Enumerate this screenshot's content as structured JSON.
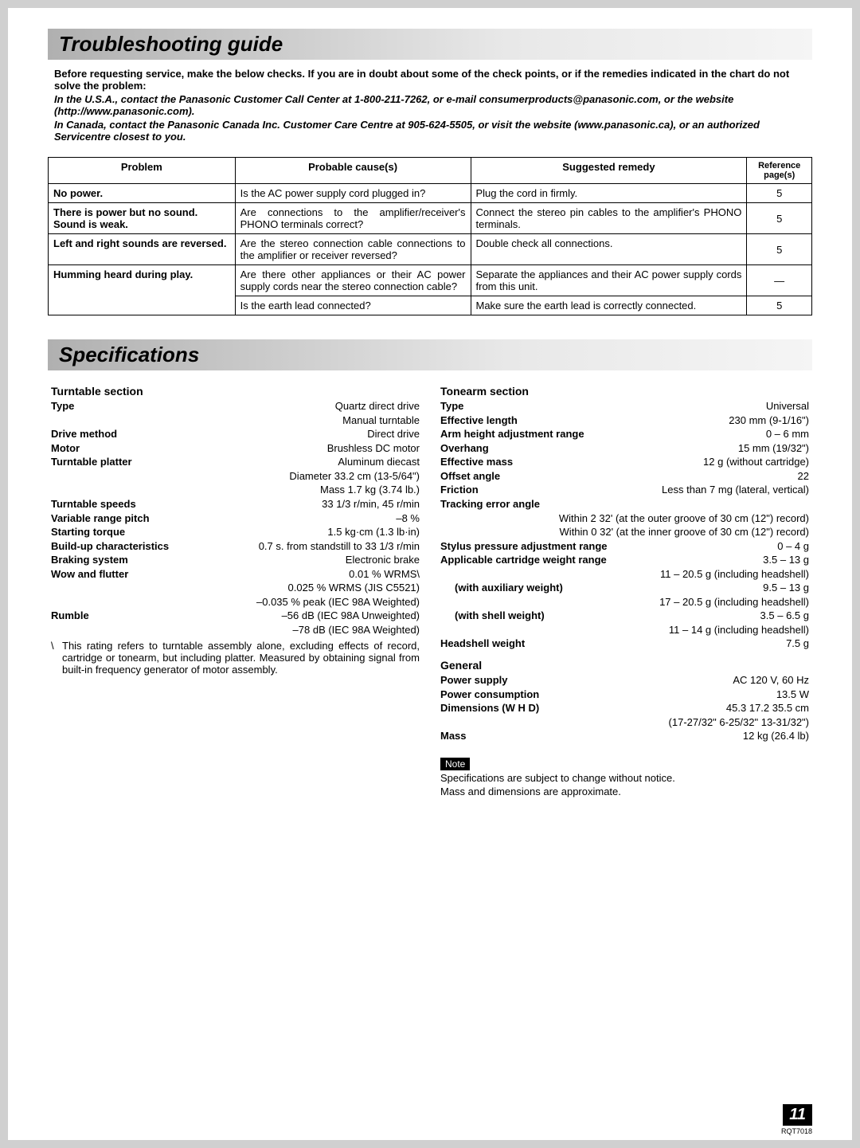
{
  "titles": {
    "troubleshooting": "Troubleshooting guide",
    "specifications": "Specifications"
  },
  "intro": {
    "lead": "Before requesting service, make the below checks. If you are in doubt about some of the check points, or if the remedies indicated in the chart do not solve the problem:",
    "usa": "In the U.S.A., contact the Panasonic Customer Call Center at 1-800-211-7262, or e-mail consumerproducts@panasonic.com, or the website (http://www.panasonic.com).",
    "canada": "In Canada, contact the Panasonic Canada Inc. Customer Care Centre at 905-624-5505, or visit the website (www.panasonic.ca), or an authorized Servicentre closest to you."
  },
  "table": {
    "headers": {
      "problem": "Problem",
      "cause": "Probable cause(s)",
      "remedy": "Suggested remedy",
      "ref": "Reference page(s)"
    },
    "rows": [
      {
        "problem": "No power.",
        "cause": "Is the AC power supply cord plugged in?",
        "remedy": "Plug the cord in firmly.",
        "ref": "5"
      },
      {
        "problem": "There is power but no sound. Sound is weak.",
        "cause": "Are connections to the amplifier/receiver's PHONO terminals correct?",
        "remedy": "Connect the stereo pin cables to the amplifier's PHONO terminals.",
        "ref": "5"
      },
      {
        "problem": "Left and right sounds are reversed.",
        "cause": "Are the stereo connection cable connections to the amplifier or receiver reversed?",
        "remedy": "Double check all connections.",
        "ref": "5"
      },
      {
        "problem": "Humming heard during play.",
        "cause": "Are there other appliances or their AC power supply cords near the stereo connection cable?",
        "remedy": "Separate the appliances and their AC power supply cords from this unit.",
        "ref": "—",
        "rowspan": 2
      },
      {
        "cause": "Is the earth lead connected?",
        "remedy": "Make sure the earth lead is correctly connected.",
        "ref": "5"
      }
    ]
  },
  "specs": {
    "turntable": {
      "heading": "Turntable section",
      "rows": [
        {
          "l": "Type",
          "r": "Quartz direct drive"
        },
        {
          "r": "Manual turntable"
        },
        {
          "l": "Drive method",
          "r": "Direct drive"
        },
        {
          "l": "Motor",
          "r": "Brushless DC motor"
        },
        {
          "l": "Turntable platter",
          "r": "Aluminum diecast"
        },
        {
          "r": "Diameter 33.2 cm (13-5/64\")"
        },
        {
          "r": "Mass 1.7 kg (3.74 lb.)"
        },
        {
          "l": "Turntable speeds",
          "r": "33 1/3 r/min, 45 r/min"
        },
        {
          "l": "Variable range pitch",
          "r": "–8 %"
        },
        {
          "l": "Starting torque",
          "r": "1.5 kg·cm (1.3 lb·in)"
        },
        {
          "l": "Build-up characteristics",
          "r": "0.7 s. from standstill to 33 1/3 r/min"
        },
        {
          "l": "Braking system",
          "r": "Electronic brake"
        },
        {
          "l": "Wow and flutter",
          "r": "0.01 % WRMS\\"
        },
        {
          "r": "0.025 % WRMS (JIS C5521)"
        },
        {
          "r": "–0.035 % peak (IEC 98A Weighted)"
        },
        {
          "l": "Rumble",
          "r": "–56 dB (IEC 98A Unweighted)"
        },
        {
          "r": "–78 dB (IEC 98A Weighted)"
        }
      ],
      "footnote_mark": "\\",
      "footnote": "This rating refers to turntable assembly alone, excluding effects of record, cartridge or tonearm, but including platter. Measured by obtaining signal from built-in frequency generator of motor assembly."
    },
    "tonearm": {
      "heading": "Tonearm section",
      "rows": [
        {
          "l": "Type",
          "r": "Universal"
        },
        {
          "l": "Effective length",
          "r": "230 mm (9-1/16\")"
        },
        {
          "l": "Arm height adjustment range",
          "r": "0 – 6 mm"
        },
        {
          "l": "Overhang",
          "r": "15 mm (19/32\")"
        },
        {
          "l": "Effective mass",
          "r": "12 g (without cartridge)"
        },
        {
          "l": "Offset angle",
          "r": "22"
        },
        {
          "l": "Friction",
          "r": "Less than 7 mg (lateral, vertical)"
        },
        {
          "l": "Tracking error angle",
          "r": ""
        },
        {
          "r": "Within 2  32' (at the outer groove of 30 cm (12\") record)",
          "indent": true
        },
        {
          "r": "Within 0  32' (at the inner groove of 30 cm (12\") record)",
          "indent": true
        },
        {
          "l": "Stylus pressure adjustment range",
          "r": "0 – 4 g"
        },
        {
          "l": "Applicable cartridge weight range",
          "r": "3.5 – 13 g"
        },
        {
          "r": "11 – 20.5 g (including headshell)"
        },
        {
          "l": "(with auxiliary weight)",
          "r": "9.5 – 13 g",
          "indent": true
        },
        {
          "r": "17 – 20.5 g (including headshell)"
        },
        {
          "l": "(with shell weight)",
          "r": "3.5 – 6.5 g",
          "indent": true
        },
        {
          "r": "11 – 14 g (including headshell)"
        },
        {
          "l": "Headshell weight",
          "r": "7.5 g"
        }
      ]
    },
    "general": {
      "heading": "General",
      "rows": [
        {
          "l": "Power supply",
          "r": "AC 120 V, 60 Hz"
        },
        {
          "l": "Power consumption",
          "r": "13.5 W"
        },
        {
          "l": "Dimensions (W  H  D)",
          "r": "45.3   17.2   35.5 cm"
        },
        {
          "r": "(17-27/32\"   6-25/32\"   13-31/32\")"
        },
        {
          "l": "Mass",
          "r": "12 kg (26.4 lb)"
        }
      ]
    },
    "note_label": "Note",
    "note_lines": [
      "Specifications are subject to change without notice.",
      "Mass and dimensions are approximate."
    ]
  },
  "footer": {
    "page": "11",
    "code": "RQT7018"
  }
}
